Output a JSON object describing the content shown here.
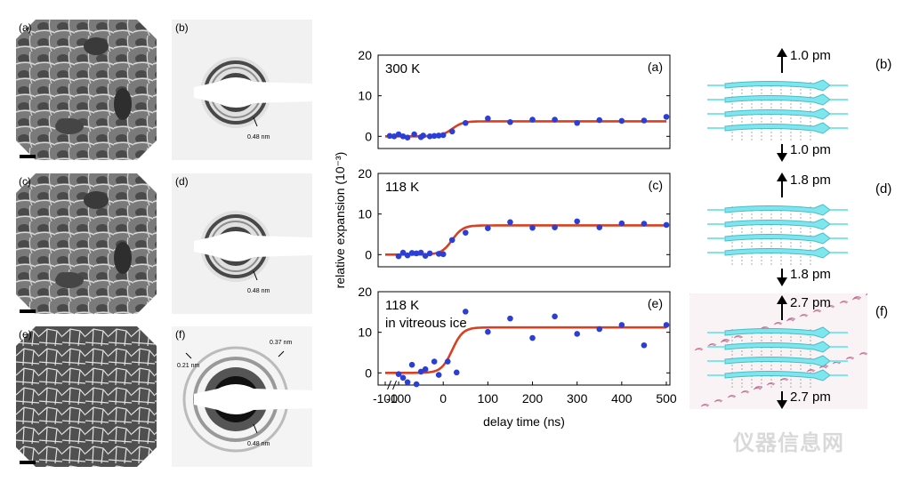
{
  "micrographs": [
    {
      "label": "(a)",
      "style": "cellular"
    },
    {
      "label": "(c)",
      "style": "cellular"
    },
    {
      "label": "(e)",
      "style": "network"
    }
  ],
  "diffraction": [
    {
      "label": "(b)",
      "annotations": [
        "0.48 nm"
      ]
    },
    {
      "label": "(d)",
      "annotations": [
        "0.48 nm"
      ]
    },
    {
      "label": "(f)",
      "annotations": [
        "0.37 nm",
        "0.21 nm",
        "0.48 nm"
      ]
    }
  ],
  "structures": [
    {
      "label": "(b)",
      "top": "1.0 pm",
      "bottom": "1.0 pm",
      "ice": false
    },
    {
      "label": "(d)",
      "top": "1.8 pm",
      "bottom": "1.8 pm",
      "ice": false
    },
    {
      "label": "(f)",
      "top": "2.7 pm",
      "bottom": "2.7 pm",
      "ice": true
    }
  ],
  "watermark": "仪器信息网",
  "chart_data": {
    "type": "scatter",
    "ylabel": "relative expansion (10⁻³)",
    "xlabel": "delay time (ns)",
    "ylim": [
      -3,
      20
    ],
    "yticks": [
      0,
      10,
      20
    ],
    "xtick_labels": [
      "-100",
      "-100",
      "0",
      "100",
      "200",
      "300",
      "400",
      "500"
    ],
    "x_axis_note": "broken axis: -100 ns, break, then -100 to 500 ns",
    "colors": {
      "fit": "#d94020",
      "points": "#2b3fd6"
    },
    "panels": [
      {
        "label": "(a)",
        "annotation": [
          "300 K"
        ],
        "fit": {
          "low": 0,
          "high": 3.7
        },
        "points_x": [
          -100,
          -120,
          -110,
          -90,
          -80,
          -65,
          -50,
          -45,
          -30,
          -20,
          -10,
          0,
          20,
          50,
          100,
          150,
          200,
          250,
          300,
          350,
          400,
          450,
          500
        ],
        "points_y": [
          0.5,
          0.1,
          0,
          0,
          -0.3,
          0.5,
          -0.2,
          0.2,
          0,
          0.1,
          0.2,
          0.3,
          1.2,
          3.3,
          4.4,
          3.5,
          4.1,
          4.1,
          3.3,
          4.0,
          3.8,
          3.9,
          4.8
        ]
      },
      {
        "label": "(c)",
        "annotation": [
          "118 K"
        ],
        "fit": {
          "low": 0,
          "high": 7.2
        },
        "points_x": [
          -100,
          -90,
          -80,
          -70,
          -60,
          -50,
          -40,
          -30,
          -10,
          0,
          20,
          50,
          100,
          150,
          200,
          250,
          300,
          350,
          400,
          450,
          500
        ],
        "points_y": [
          -0.4,
          0.5,
          -0.2,
          0.4,
          0.3,
          0.5,
          -0.3,
          0.3,
          0.2,
          0.1,
          3.6,
          5.4,
          6.5,
          8.0,
          6.6,
          6.7,
          8.2,
          6.7,
          7.7,
          7.6,
          7.3
        ]
      },
      {
        "label": "(e)",
        "annotation": [
          "118 K",
          "in vitreous ice"
        ],
        "fit": {
          "low": 0,
          "high": 11.2
        },
        "points_x": [
          -100,
          -90,
          -80,
          -70,
          -60,
          -50,
          -40,
          -20,
          -10,
          10,
          30,
          50,
          100,
          150,
          200,
          250,
          300,
          350,
          400,
          450,
          500
        ],
        "points_y": [
          -0.3,
          -1.2,
          -2.3,
          2.0,
          -2.8,
          0.3,
          0.9,
          2.8,
          -0.5,
          2.8,
          0.1,
          15.1,
          10.1,
          13.4,
          8.6,
          13.9,
          9.6,
          10.8,
          11.8,
          6.8,
          11.8
        ]
      }
    ]
  }
}
